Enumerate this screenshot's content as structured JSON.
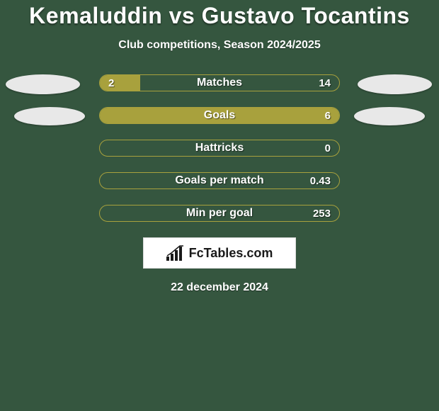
{
  "title": "Kemaluddin vs Gustavo Tocantins",
  "subtitle": "Club competitions, Season 2024/2025",
  "date": "22 december 2024",
  "brand": "FcTables.com",
  "colors": {
    "background": "#35563f",
    "bar_fill": "#a8a13d",
    "bar_border": "#a8a13d",
    "ellipse": "#e8e8e8",
    "text": "#ffffff",
    "brand_box_bg": "#ffffff",
    "brand_text": "#1a1a1a"
  },
  "rows": [
    {
      "label": "Matches",
      "left_value": "2",
      "right_value": "14",
      "left_fill_pct": 17,
      "show_ellipses": true,
      "ellipse_variant": 1
    },
    {
      "label": "Goals",
      "left_value": "",
      "right_value": "6",
      "left_fill_pct": 100,
      "show_ellipses": true,
      "ellipse_variant": 2
    },
    {
      "label": "Hattricks",
      "left_value": "",
      "right_value": "0",
      "left_fill_pct": 0,
      "show_ellipses": false
    },
    {
      "label": "Goals per match",
      "left_value": "",
      "right_value": "0.43",
      "left_fill_pct": 0,
      "show_ellipses": false
    },
    {
      "label": "Min per goal",
      "left_value": "",
      "right_value": "253",
      "left_fill_pct": 0,
      "show_ellipses": false
    }
  ]
}
